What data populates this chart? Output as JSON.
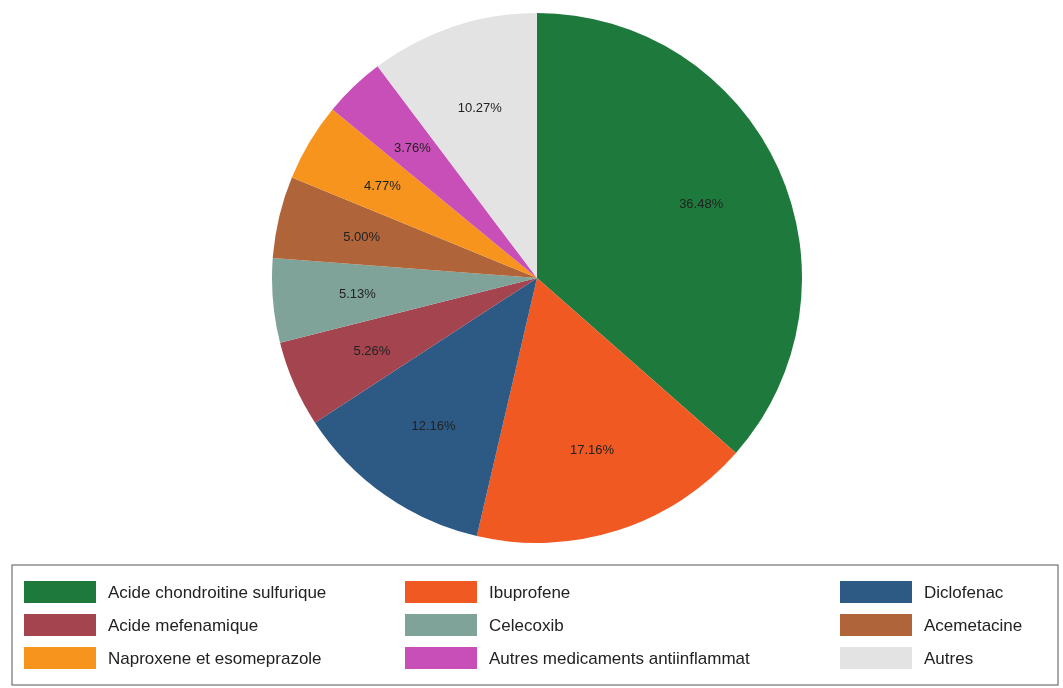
{
  "chart_data": {
    "type": "pie",
    "categories": [
      "Acide chondroitine sulfurique",
      "Ibuprofene",
      "Diclofenac",
      "Acide mefenamique",
      "Celecoxib",
      "Acemetacine",
      "Naproxene et esomeprazole",
      "Autres medicaments antiinflammat",
      "Autres"
    ],
    "values": [
      36.48,
      17.16,
      12.16,
      5.26,
      5.13,
      5.0,
      4.77,
      3.76,
      10.27
    ],
    "value_labels": [
      "36.48%",
      "17.16%",
      "12.16%",
      "5.26%",
      "5.13%",
      "5.00%",
      "4.77%",
      "3.76%",
      "10.27%"
    ],
    "colors": [
      "#1e7a3c",
      "#f05a22",
      "#2c5a85",
      "#a3444f",
      "#7fa398",
      "#b0643a",
      "#f7941d",
      "#c94fb8",
      "#e3e3e3"
    ],
    "legend": "bottom"
  }
}
